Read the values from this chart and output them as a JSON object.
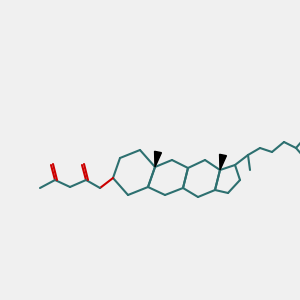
{
  "bg_color": "#f0f0f0",
  "bond_color": "#2d7070",
  "stereo_color": "#000000",
  "oxygen_color": "#cc0000",
  "line_width": 1.5,
  "fig_width": 3.0,
  "fig_height": 3.0,
  "dpi": 100
}
